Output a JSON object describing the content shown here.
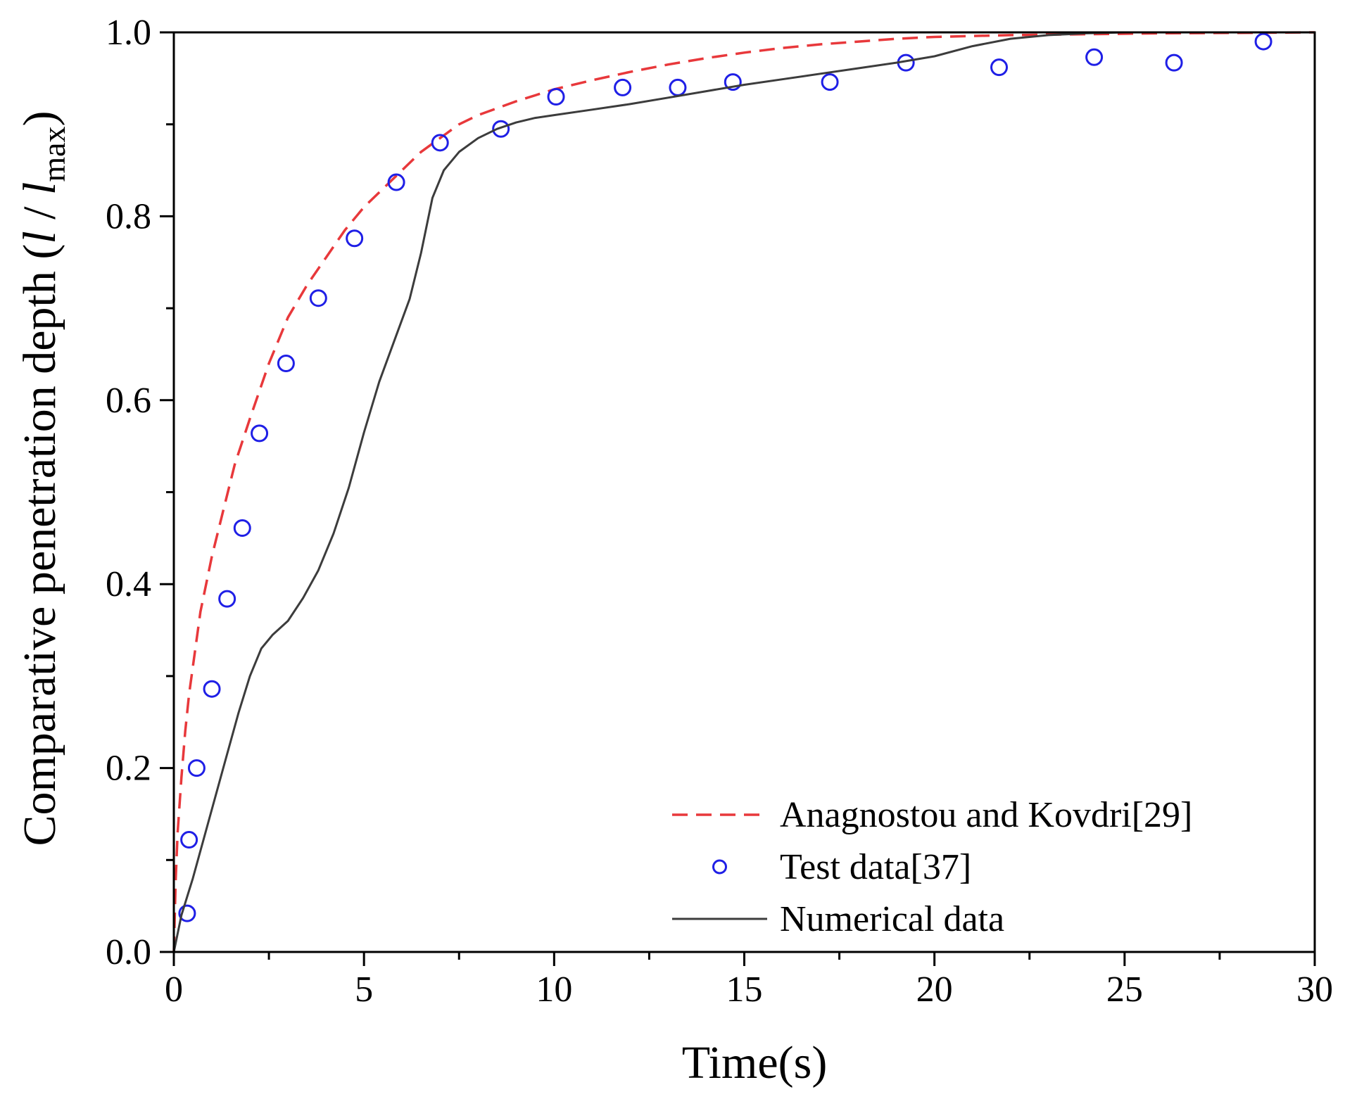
{
  "chart_data": {
    "type": "line",
    "title": "",
    "xlabel": "Time(s)",
    "ylabel_parts": {
      "prefix": "Comparative penetration depth (",
      "l1": "l",
      "slash": " / ",
      "l2": "l",
      "subscript": "max",
      "suffix": ")"
    },
    "xlim": [
      0,
      30
    ],
    "ylim": [
      0,
      1.0
    ],
    "x_ticks": [
      0,
      5,
      10,
      15,
      20,
      25,
      30
    ],
    "x_tick_labels": [
      "0",
      "5",
      "10",
      "15",
      "20",
      "25",
      "30"
    ],
    "y_ticks": [
      0.0,
      0.2,
      0.4,
      0.6,
      0.8,
      1.0
    ],
    "y_tick_labels": [
      "0.0",
      "0.2",
      "0.4",
      "0.6",
      "0.8",
      "1.0"
    ],
    "grid": false,
    "legend_position": "bottom-right",
    "series": [
      {
        "name": "Anagnostou and Kovdri[29]",
        "style": "dashed-line",
        "color": "#e8383b",
        "x": [
          0,
          0.05,
          0.1,
          0.2,
          0.3,
          0.4,
          0.5,
          0.7,
          1.0,
          1.3,
          1.6,
          2.0,
          2.5,
          3.0,
          3.5,
          4.0,
          4.5,
          5.0,
          5.5,
          6.0,
          6.5,
          7.0,
          7.5,
          8.0,
          9.0,
          10.0,
          11.0,
          12.0,
          13.0,
          14.0,
          15.0,
          16.0,
          17.0,
          18.0,
          19.0,
          20.0,
          22.0,
          24.0,
          26.0,
          28.0,
          30.0
        ],
        "y": [
          0,
          0.08,
          0.13,
          0.19,
          0.24,
          0.28,
          0.31,
          0.37,
          0.43,
          0.48,
          0.53,
          0.58,
          0.64,
          0.69,
          0.725,
          0.755,
          0.785,
          0.81,
          0.83,
          0.85,
          0.87,
          0.885,
          0.9,
          0.91,
          0.925,
          0.938,
          0.948,
          0.957,
          0.965,
          0.972,
          0.978,
          0.983,
          0.987,
          0.99,
          0.993,
          0.995,
          0.997,
          0.998,
          0.999,
          0.9995,
          1.0
        ]
      },
      {
        "name": "Test data[37]",
        "style": "open-circle",
        "color": "#1f1fe6",
        "x": [
          0.35,
          0.4,
          0.6,
          1.0,
          1.4,
          1.8,
          2.25,
          2.95,
          3.8,
          4.75,
          5.85,
          7.0,
          8.6,
          10.05,
          11.8,
          13.25,
          14.7,
          17.25,
          19.25,
          21.7,
          24.2,
          26.3,
          28.65
        ],
        "y": [
          0.042,
          0.122,
          0.2,
          0.286,
          0.384,
          0.461,
          0.564,
          0.64,
          0.711,
          0.776,
          0.837,
          0.88,
          0.895,
          0.93,
          0.94,
          0.94,
          0.946,
          0.946,
          0.967,
          0.962,
          0.973,
          0.967,
          0.99
        ]
      },
      {
        "name": "Numerical data",
        "style": "solid-line",
        "color": "#3c3c3c",
        "x": [
          0,
          0.2,
          0.5,
          0.9,
          1.3,
          1.7,
          2.0,
          2.3,
          2.6,
          3.0,
          3.4,
          3.8,
          4.2,
          4.6,
          5.0,
          5.4,
          5.8,
          6.2,
          6.5,
          6.8,
          7.1,
          7.5,
          8.0,
          8.5,
          9.0,
          9.5,
          10.0,
          11.0,
          12.0,
          13.0,
          14.0,
          15.0,
          16.0,
          17.0,
          18.0,
          19.0,
          20.0,
          21.0,
          22.0,
          23.0,
          24.0,
          25.0,
          26.0,
          28.0,
          30.0
        ],
        "y": [
          0,
          0.04,
          0.08,
          0.14,
          0.2,
          0.26,
          0.3,
          0.33,
          0.345,
          0.36,
          0.385,
          0.415,
          0.455,
          0.505,
          0.565,
          0.62,
          0.665,
          0.71,
          0.76,
          0.82,
          0.85,
          0.87,
          0.885,
          0.895,
          0.902,
          0.907,
          0.91,
          0.916,
          0.922,
          0.929,
          0.936,
          0.943,
          0.949,
          0.955,
          0.961,
          0.967,
          0.974,
          0.985,
          0.993,
          0.997,
          0.999,
          1.0,
          1.0,
          1.0,
          1.0
        ]
      }
    ]
  }
}
